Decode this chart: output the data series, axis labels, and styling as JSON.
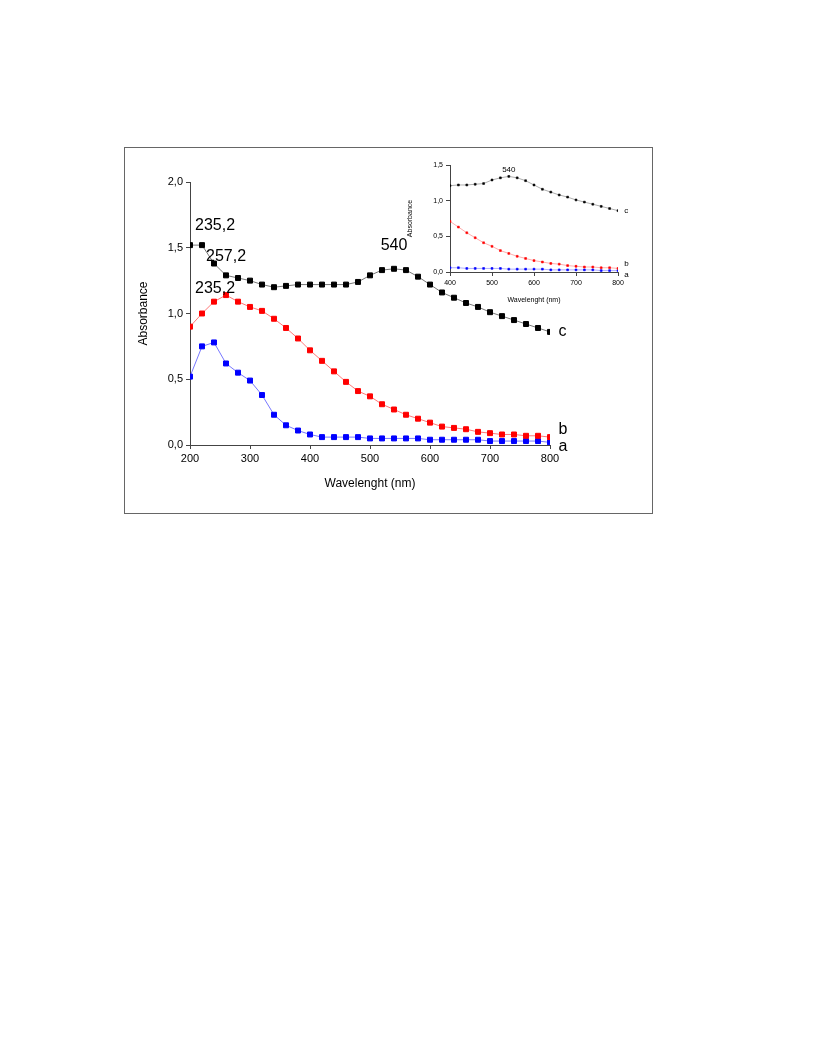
{
  "chart_data": [
    {
      "type": "line",
      "xlabel": "Wavelenght (nm)",
      "ylabel": "Absorbance",
      "marker": "square",
      "x": [
        200,
        220,
        240,
        260,
        280,
        300,
        320,
        340,
        360,
        380,
        400,
        420,
        440,
        460,
        480,
        500,
        520,
        540,
        560,
        580,
        600,
        620,
        640,
        660,
        680,
        700,
        720,
        740,
        760,
        780,
        800
      ],
      "series": [
        {
          "name": "c",
          "color": "#000000",
          "values": [
            1.52,
            1.52,
            1.38,
            1.29,
            1.27,
            1.25,
            1.22,
            1.2,
            1.21,
            1.22,
            1.22,
            1.22,
            1.22,
            1.22,
            1.24,
            1.29,
            1.33,
            1.34,
            1.33,
            1.28,
            1.22,
            1.16,
            1.12,
            1.08,
            1.05,
            1.01,
            0.98,
            0.95,
            0.92,
            0.89,
            0.86
          ]
        },
        {
          "name": "b",
          "color": "#ff0000",
          "values": [
            0.9,
            1.0,
            1.09,
            1.14,
            1.09,
            1.05,
            1.02,
            0.96,
            0.89,
            0.81,
            0.72,
            0.64,
            0.56,
            0.48,
            0.41,
            0.37,
            0.31,
            0.27,
            0.23,
            0.2,
            0.17,
            0.14,
            0.13,
            0.12,
            0.1,
            0.09,
            0.08,
            0.08,
            0.07,
            0.07,
            0.06
          ]
        },
        {
          "name": "a",
          "color": "#0000ff",
          "values": [
            0.52,
            0.75,
            0.78,
            0.62,
            0.55,
            0.49,
            0.38,
            0.23,
            0.15,
            0.11,
            0.08,
            0.06,
            0.06,
            0.06,
            0.06,
            0.05,
            0.05,
            0.05,
            0.05,
            0.05,
            0.04,
            0.04,
            0.04,
            0.04,
            0.04,
            0.03,
            0.03,
            0.03,
            0.03,
            0.03,
            0.02
          ]
        }
      ],
      "xlim": [
        200,
        800
      ],
      "xticks": [
        200,
        300,
        400,
        500,
        600,
        700,
        800
      ],
      "ylim": [
        0,
        2
      ],
      "yticks": [
        {
          "value": 0,
          "label": "0,0"
        },
        {
          "value": 0.5,
          "label": "0,5"
        },
        {
          "value": 1,
          "label": "1,0"
        },
        {
          "value": 1.5,
          "label": "1,5"
        },
        {
          "value": 2,
          "label": "2,0"
        }
      ],
      "annotations": [
        {
          "text": "235,2",
          "x": 220,
          "y": 1.52
        },
        {
          "text": "257,2",
          "x": 260,
          "y": 1.14
        },
        {
          "text": "235,2",
          "x": 240,
          "y": 0.78
        },
        {
          "text": "540",
          "x": 540,
          "y": 1.34
        }
      ]
    },
    {
      "type": "line",
      "xlabel": "Wavelenght (nm)",
      "ylabel": "Absorbance",
      "marker": "square",
      "x": [
        400,
        420,
        440,
        460,
        480,
        500,
        520,
        540,
        560,
        580,
        600,
        620,
        640,
        660,
        680,
        700,
        720,
        740,
        760,
        780,
        800
      ],
      "series": [
        {
          "name": "c",
          "color": "#000000",
          "values": [
            1.21,
            1.22,
            1.22,
            1.23,
            1.24,
            1.29,
            1.32,
            1.34,
            1.32,
            1.28,
            1.22,
            1.16,
            1.12,
            1.08,
            1.05,
            1.01,
            0.98,
            0.95,
            0.92,
            0.89,
            0.86
          ]
        },
        {
          "name": "b",
          "color": "#ff0000",
          "values": [
            0.71,
            0.63,
            0.55,
            0.48,
            0.41,
            0.36,
            0.3,
            0.26,
            0.22,
            0.19,
            0.16,
            0.14,
            0.12,
            0.11,
            0.09,
            0.08,
            0.07,
            0.07,
            0.06,
            0.06,
            0.05
          ]
        },
        {
          "name": "a",
          "color": "#0000ff",
          "values": [
            0.06,
            0.06,
            0.05,
            0.05,
            0.05,
            0.05,
            0.05,
            0.04,
            0.04,
            0.04,
            0.04,
            0.04,
            0.03,
            0.03,
            0.03,
            0.03,
            0.03,
            0.03,
            0.02,
            0.02,
            0.02
          ]
        }
      ],
      "xlim": [
        400,
        800
      ],
      "xticks": [
        400,
        500,
        600,
        700,
        800
      ],
      "ylim": [
        0,
        1.5
      ],
      "yticks": [
        {
          "value": 0,
          "label": "0,0"
        },
        {
          "value": 0.5,
          "label": "0,5"
        },
        {
          "value": 1,
          "label": "1,0"
        },
        {
          "value": 1.5,
          "label": "1,5"
        }
      ],
      "annotations": [
        {
          "text": "540",
          "x": 540,
          "y": 1.34
        }
      ]
    }
  ]
}
